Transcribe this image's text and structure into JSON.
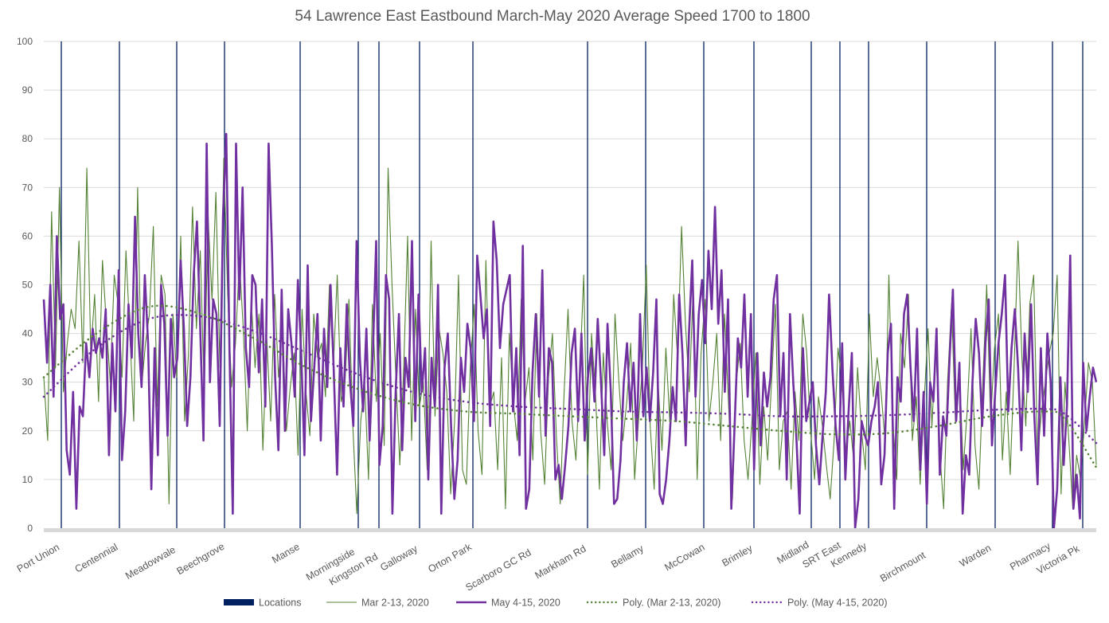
{
  "chart_data": {
    "type": "line",
    "title": "54 Lawrence East Eastbound March-May 2020 Average Speed 1700 to 1800",
    "xlabel": "",
    "ylabel": "",
    "ylim": [
      0,
      100
    ],
    "yticks": [
      0,
      10,
      20,
      30,
      40,
      50,
      60,
      70,
      80,
      90,
      100
    ],
    "grid": true,
    "legend_position": "bottom",
    "x_domain": [
      0,
      1
    ],
    "locations": [
      {
        "name": "Port Union",
        "x": 0.017
      },
      {
        "name": "Centennial",
        "x": 0.072
      },
      {
        "name": "Meadowvale",
        "x": 0.127
      },
      {
        "name": "Beechgrove",
        "x": 0.173
      },
      {
        "name": "Manse",
        "x": 0.244
      },
      {
        "name": "Morningside",
        "x": 0.299
      },
      {
        "name": "Kingston Rd",
        "x": 0.318
      },
      {
        "name": "Galloway",
        "x": 0.357
      },
      {
        "name": "Orton Park",
        "x": 0.408
      },
      {
        "name": "Scarboro GC Rd",
        "x": 0.516
      },
      {
        "name": "Markham Rd",
        "x": 0.572
      },
      {
        "name": "Bellamy",
        "x": 0.627
      },
      {
        "name": "McCowan",
        "x": 0.675
      },
      {
        "name": "Brimley",
        "x": 0.729
      },
      {
        "name": "Midland",
        "x": 0.757
      },
      {
        "name": "SRT East",
        "x": 0.784
      },
      {
        "name": "Kennedy",
        "x": 0.839
      },
      {
        "name": "Birchmount",
        "x": 0.905
      },
      {
        "name": "Warden",
        "x": 0.959
      },
      {
        "name": "Pharmacy",
        "x": 0.987
      },
      {
        "name": "Victoria Pk",
        "x": 1.0
      }
    ],
    "category_labels": [
      "Port Union",
      "Centennial",
      "Meadowvale",
      "Beechgrove",
      "Manse",
      "Morningside",
      "Kingston Rd",
      "Galloway",
      "Orton Park",
      "Scarboro GC Rd",
      "Markham Rd",
      "Bellamy",
      "McCowan",
      "Brimley",
      "Midland",
      "SRT East",
      "Kennedy",
      "Birchmount",
      "Warden",
      "Pharmacy",
      "Victoria Pk"
    ],
    "series": [
      {
        "name": "Mar 2-13, 2020",
        "color": "#548235",
        "style": "solid-thin",
        "values": [
          31,
          18,
          65,
          33,
          70,
          28,
          38,
          45,
          41,
          59,
          34,
          74,
          36,
          48,
          26,
          55,
          42,
          30,
          52,
          46,
          31,
          57,
          40,
          22,
          70,
          29,
          38,
          44,
          62,
          25,
          52,
          48,
          5,
          44,
          31,
          60,
          22,
          36,
          66,
          41,
          57,
          28,
          64,
          47,
          69,
          33,
          76,
          48,
          29,
          38,
          55,
          41,
          20,
          47,
          33,
          44,
          16,
          39,
          22,
          48,
          31,
          42,
          20,
          29,
          36,
          15,
          45,
          28,
          19,
          44,
          35,
          38,
          27,
          50,
          33,
          52,
          26,
          30,
          47,
          21,
          3,
          22,
          30,
          10,
          46,
          26,
          40,
          17,
          74,
          50,
          31,
          13,
          33,
          60,
          18,
          45,
          25,
          30,
          12,
          59,
          23,
          41,
          36,
          28,
          7,
          22,
          52,
          12,
          9,
          33,
          46,
          20,
          11,
          55,
          25,
          28,
          12,
          35,
          4,
          40,
          26,
          18,
          47,
          26,
          33,
          14,
          44,
          20,
          9,
          31,
          40,
          19,
          5,
          28,
          45,
          22,
          14,
          32,
          52,
          11,
          40,
          28,
          8,
          36,
          22,
          12,
          44,
          30,
          18,
          26,
          38,
          10,
          22,
          33,
          54,
          21,
          8,
          30,
          16,
          37,
          22,
          48,
          35,
          62,
          42,
          28,
          50,
          10,
          36,
          47,
          22,
          30,
          40,
          18,
          44,
          26,
          6,
          30,
          38,
          18,
          10,
          22,
          36,
          9,
          25,
          14,
          30,
          46,
          12,
          22,
          24,
          8,
          28,
          18,
          44,
          36,
          20,
          10,
          27,
          21,
          13,
          6,
          18,
          37,
          30,
          15,
          22,
          14,
          33,
          20,
          12,
          44,
          27,
          35,
          28,
          18,
          52,
          22,
          10,
          40,
          33,
          48,
          18,
          27,
          9,
          26,
          41,
          21,
          38,
          16,
          4,
          30,
          46,
          22,
          34,
          12,
          24,
          41,
          17,
          8,
          30,
          50,
          22,
          37,
          44,
          14,
          28,
          11,
          33,
          59,
          35,
          21,
          46,
          52,
          15,
          24,
          30,
          36,
          40,
          52,
          7,
          30,
          18,
          4,
          15,
          10,
          22,
          34,
          30,
          13
        ]
      },
      {
        "name": "May 4-15, 2020",
        "color": "#7030a0",
        "style": "solid-thick",
        "values": [
          47,
          34,
          50,
          27,
          60,
          43,
          46,
          16,
          11,
          28,
          4,
          25,
          23,
          38,
          31,
          41,
          36,
          39,
          35,
          45,
          15,
          38,
          24,
          53,
          14,
          24,
          46,
          35,
          64,
          40,
          29,
          52,
          38,
          8,
          37,
          15,
          50,
          42,
          19,
          43,
          31,
          35,
          55,
          41,
          21,
          31,
          52,
          63,
          41,
          18,
          79,
          30,
          47,
          44,
          21,
          64,
          81,
          36,
          3,
          79,
          47,
          70,
          37,
          29,
          52,
          50,
          32,
          47,
          25,
          79,
          58,
          31,
          16,
          49,
          20,
          45,
          38,
          27,
          51,
          36,
          15,
          54,
          22,
          33,
          44,
          18,
          41,
          29,
          50,
          32,
          11,
          37,
          25,
          46,
          30,
          21,
          59,
          35,
          24,
          41,
          18,
          36,
          59,
          13,
          21,
          52,
          47,
          3,
          28,
          44,
          16,
          35,
          29,
          59,
          22,
          48,
          28,
          37,
          10,
          35,
          25,
          50,
          3,
          33,
          40,
          21,
          6,
          14,
          35,
          28,
          42,
          37,
          22,
          56,
          48,
          39,
          45,
          21,
          63,
          55,
          37,
          46,
          49,
          52,
          24,
          37,
          15,
          58,
          4,
          8,
          32,
          44,
          27,
          53,
          19,
          37,
          34,
          10,
          13,
          6,
          13,
          21,
          36,
          41,
          22,
          40,
          18,
          31,
          37,
          26,
          43,
          30,
          15,
          42,
          28,
          5,
          6,
          14,
          30,
          38,
          24,
          34,
          18,
          44,
          23,
          33,
          22,
          32,
          47,
          7,
          5,
          10,
          18,
          29,
          22,
          48,
          36,
          17,
          40,
          55,
          27,
          44,
          51,
          38,
          57,
          45,
          66,
          42,
          53,
          28,
          47,
          4,
          21,
          39,
          33,
          48,
          27,
          44,
          12,
          36,
          17,
          32,
          25,
          31,
          47,
          52,
          23,
          36,
          10,
          44,
          30,
          18,
          3,
          37,
          22,
          26,
          30,
          17,
          9,
          19,
          28,
          48,
          33,
          21,
          14,
          38,
          10,
          24,
          36,
          0,
          6,
          22,
          19,
          17,
          22,
          25,
          30,
          9,
          15,
          36,
          42,
          4,
          31,
          26,
          44,
          48,
          33,
          22,
          41,
          12,
          28,
          5,
          30,
          26,
          41,
          11,
          23,
          19,
          35,
          49,
          22,
          34,
          3,
          15,
          11,
          30,
          43,
          36,
          21,
          38,
          47,
          17,
          28,
          38,
          44,
          52,
          24,
          37,
          45,
          33,
          16,
          40,
          28,
          46,
          23,
          9,
          37,
          19,
          40,
          30,
          0,
          8,
          31,
          13,
          25,
          56,
          4,
          11,
          2,
          34,
          20,
          27,
          33,
          30
        ]
      },
      {
        "name": "Poly. (Mar 2-13, 2020)",
        "color": "#548235",
        "style": "dotted",
        "trend_points": [
          [
            0,
            31
          ],
          [
            0.05,
            40
          ],
          [
            0.1,
            45.5
          ],
          [
            0.15,
            44
          ],
          [
            0.2,
            39
          ],
          [
            0.25,
            33
          ],
          [
            0.3,
            28.5
          ],
          [
            0.35,
            25.5
          ],
          [
            0.4,
            24
          ],
          [
            0.45,
            23.5
          ],
          [
            0.5,
            23
          ],
          [
            0.55,
            22.5
          ],
          [
            0.6,
            22
          ],
          [
            0.65,
            21
          ],
          [
            0.7,
            20
          ],
          [
            0.75,
            19.3
          ],
          [
            0.8,
            19.5
          ],
          [
            0.85,
            21
          ],
          [
            0.9,
            23
          ],
          [
            0.95,
            24
          ],
          [
            0.97,
            22.5
          ],
          [
            1.0,
            12.5
          ]
        ]
      },
      {
        "name": "Poly. (May 4-15, 2020)",
        "color": "#7030a0",
        "style": "dotted",
        "trend_points": [
          [
            0,
            27
          ],
          [
            0.05,
            37
          ],
          [
            0.1,
            43
          ],
          [
            0.15,
            43.5
          ],
          [
            0.2,
            40.5
          ],
          [
            0.25,
            36
          ],
          [
            0.3,
            31.5
          ],
          [
            0.35,
            28
          ],
          [
            0.4,
            26
          ],
          [
            0.45,
            25
          ],
          [
            0.5,
            24.5
          ],
          [
            0.55,
            24
          ],
          [
            0.6,
            23.8
          ],
          [
            0.65,
            23.5
          ],
          [
            0.7,
            23
          ],
          [
            0.75,
            23
          ],
          [
            0.8,
            23.2
          ],
          [
            0.85,
            23.7
          ],
          [
            0.9,
            24.3
          ],
          [
            0.95,
            24.5
          ],
          [
            0.97,
            23.5
          ],
          [
            1.0,
            17.5
          ]
        ]
      }
    ],
    "legend": [
      {
        "label": "Locations",
        "color": "#002060",
        "kind": "box"
      },
      {
        "label": "Mar 2-13, 2020",
        "color": "#548235",
        "kind": "line-thin"
      },
      {
        "label": "May 4-15, 2020",
        "color": "#7030a0",
        "kind": "line-thick"
      },
      {
        "label": "Poly. (Mar 2-13, 2020)",
        "color": "#548235",
        "kind": "dotted"
      },
      {
        "label": "Poly. (May 4-15, 2020)",
        "color": "#7030a0",
        "kind": "dotted"
      }
    ],
    "location_line_color": "#002060",
    "grid_color": "#d9d9d9"
  }
}
